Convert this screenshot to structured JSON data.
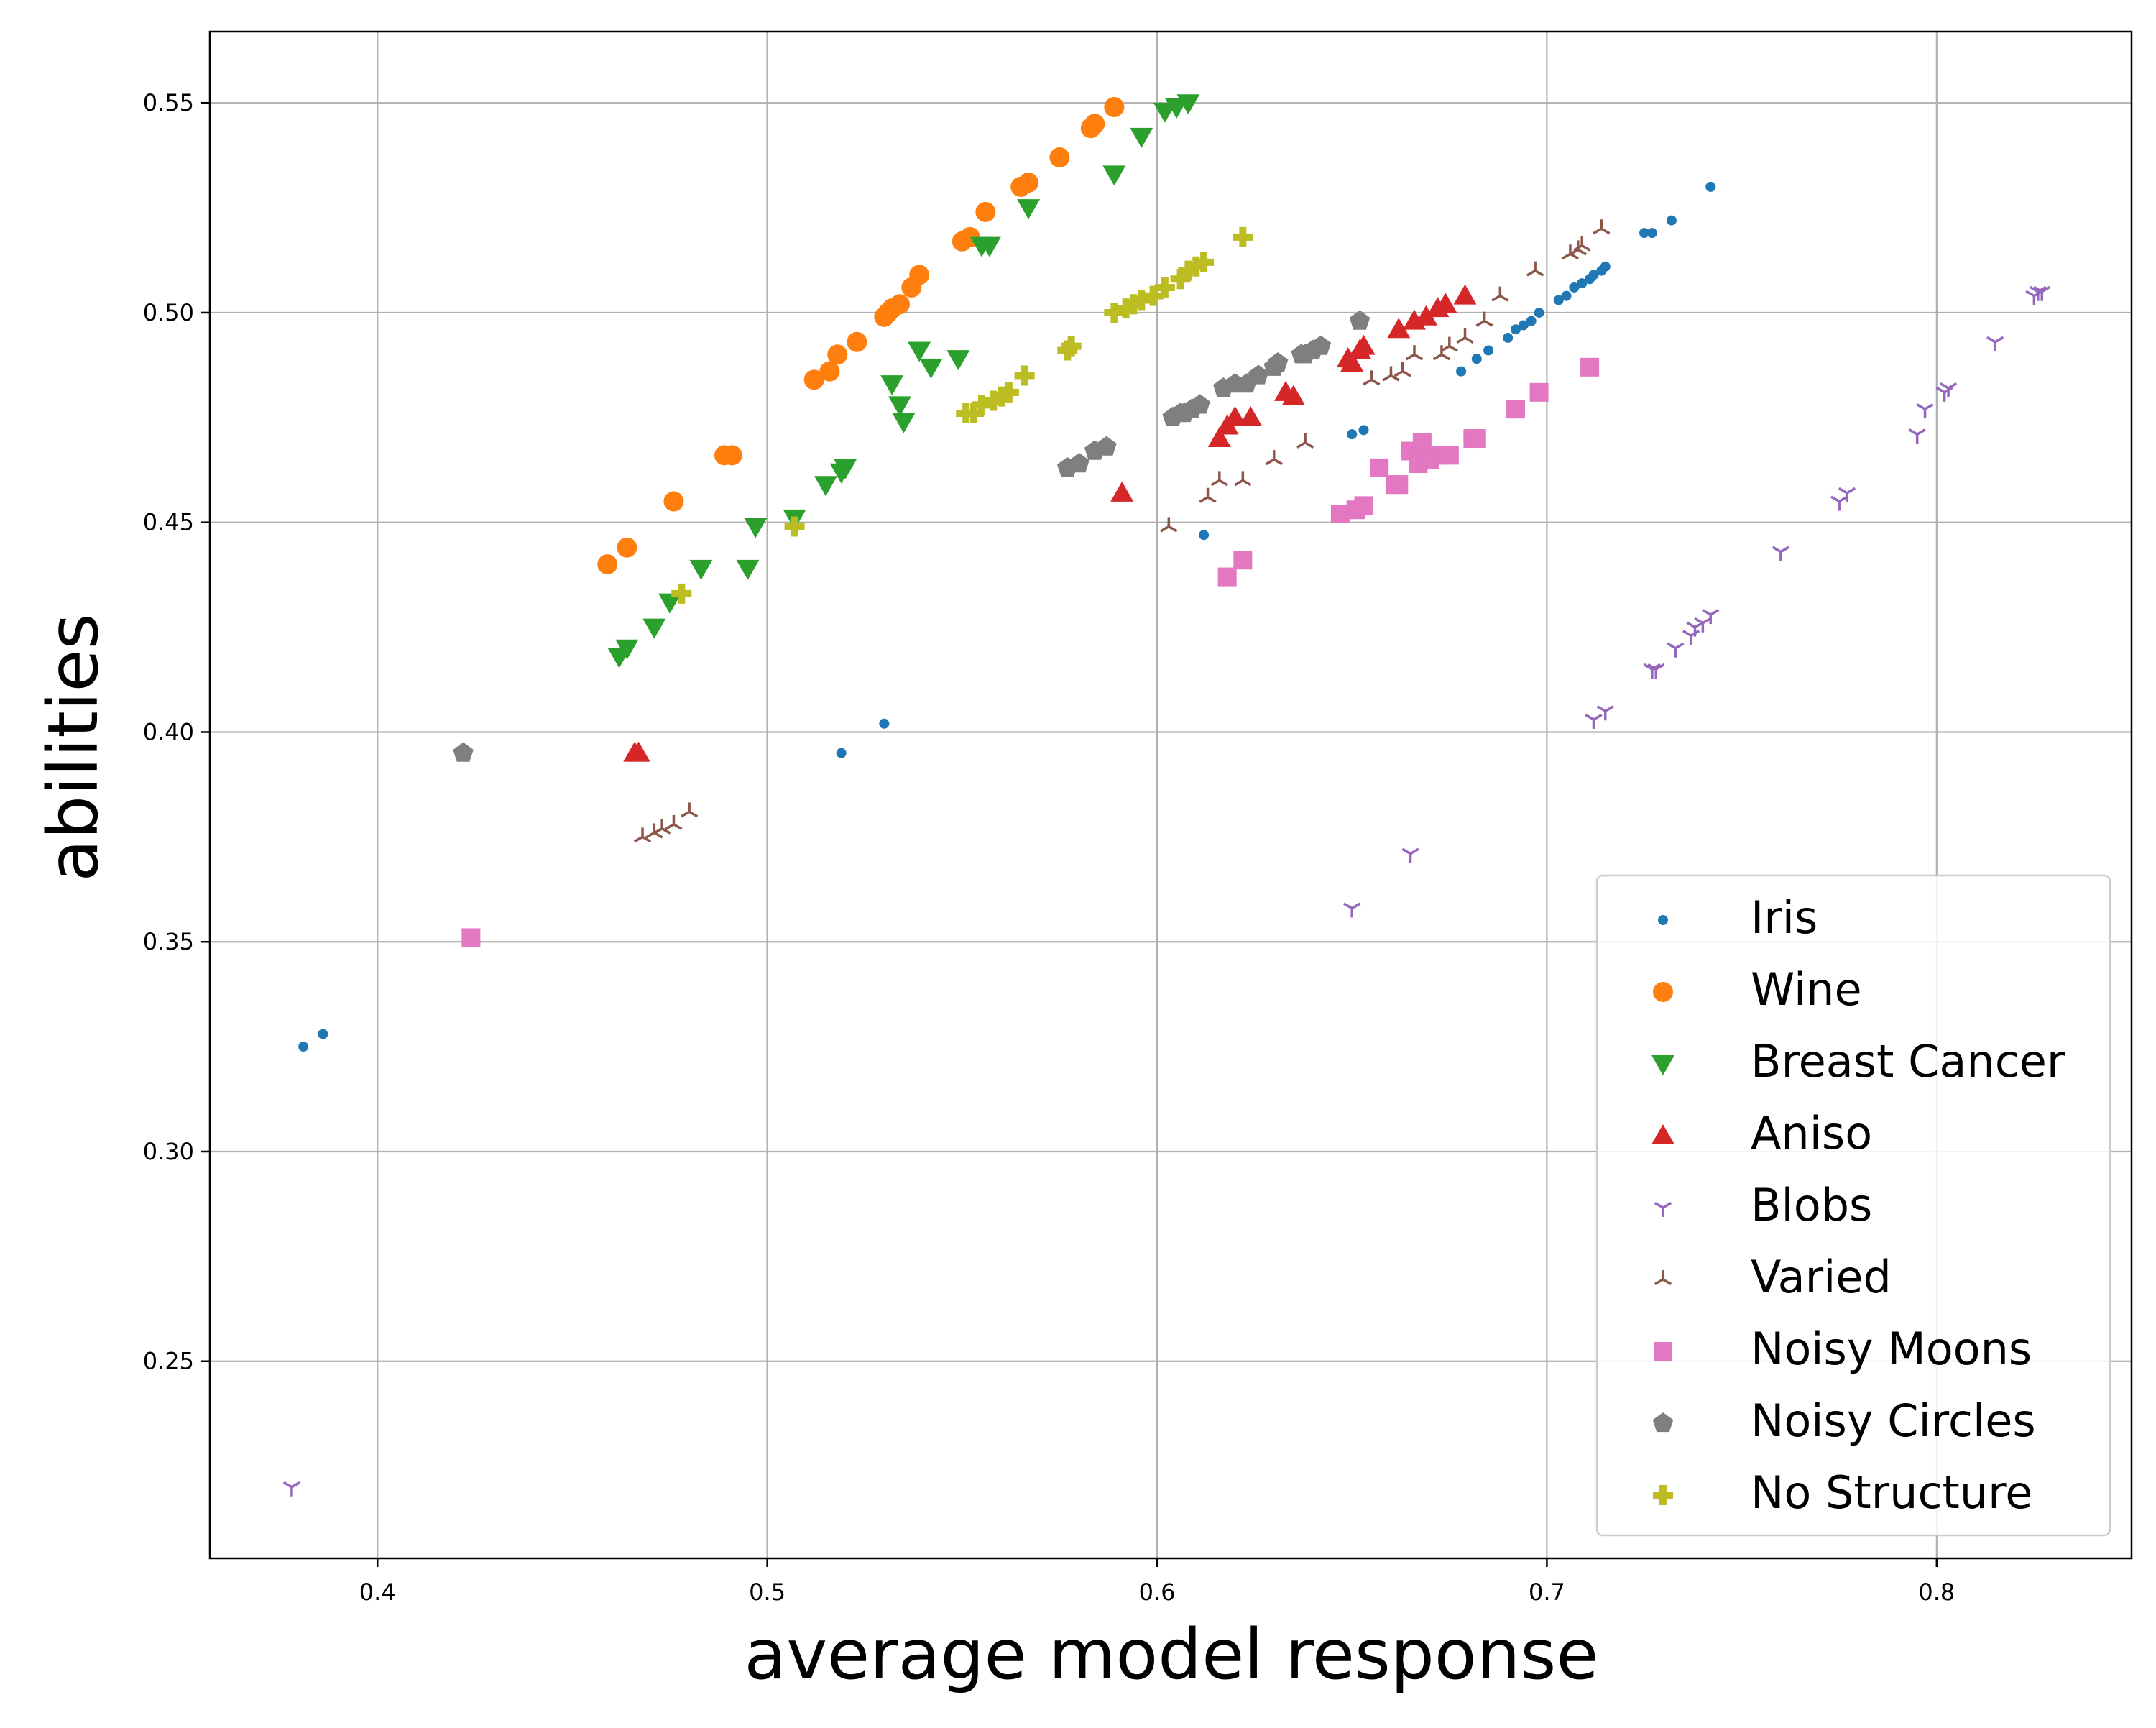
{
  "chart_data": {
    "type": "scatter",
    "title": "",
    "xlabel": "average model response",
    "ylabel": "abilities",
    "xlim": [
      0.357,
      0.85
    ],
    "ylim": [
      0.203,
      0.567
    ],
    "xticks": [
      0.4,
      0.5,
      0.6,
      0.7,
      0.8
    ],
    "xtick_labels": [
      "0.4",
      "0.5",
      "0.6",
      "0.7",
      "0.8"
    ],
    "yticks": [
      0.25,
      0.3,
      0.35,
      0.4,
      0.45,
      0.5,
      0.55
    ],
    "ytick_labels": [
      "0.25",
      "0.30",
      "0.35",
      "0.40",
      "0.45",
      "0.50",
      "0.55"
    ],
    "grid": true,
    "legend_position": "lower-right",
    "series": [
      {
        "name": "Iris",
        "color": "#1f77b4",
        "marker": "point",
        "x": [
          0.381,
          0.386,
          0.519,
          0.53,
          0.612,
          0.65,
          0.653,
          0.678,
          0.682,
          0.685,
          0.69,
          0.692,
          0.694,
          0.696,
          0.698,
          0.703,
          0.705,
          0.707,
          0.709,
          0.711,
          0.712,
          0.714,
          0.715,
          0.725,
          0.727,
          0.732,
          0.742
        ],
        "y": [
          0.325,
          0.328,
          0.395,
          0.402,
          0.447,
          0.471,
          0.472,
          0.486,
          0.489,
          0.491,
          0.494,
          0.496,
          0.497,
          0.498,
          0.5,
          0.503,
          0.504,
          0.506,
          0.507,
          0.508,
          0.509,
          0.51,
          0.511,
          0.519,
          0.519,
          0.522,
          0.53
        ]
      },
      {
        "name": "Wine",
        "color": "#ff7f0e",
        "marker": "circle",
        "x": [
          0.459,
          0.464,
          0.476,
          0.489,
          0.491,
          0.512,
          0.516,
          0.518,
          0.523,
          0.53,
          0.531,
          0.532,
          0.534,
          0.537,
          0.539,
          0.55,
          0.552,
          0.556,
          0.565,
          0.567,
          0.575,
          0.583,
          0.584,
          0.589
        ],
        "y": [
          0.44,
          0.444,
          0.455,
          0.466,
          0.466,
          0.484,
          0.486,
          0.49,
          0.493,
          0.499,
          0.5,
          0.501,
          0.502,
          0.506,
          0.509,
          0.517,
          0.518,
          0.524,
          0.53,
          0.531,
          0.537,
          0.544,
          0.545,
          0.549
        ]
      },
      {
        "name": "Breast Cancer",
        "color": "#2ca02c",
        "marker": "triangle-down",
        "x": [
          0.462,
          0.464,
          0.471,
          0.475,
          0.483,
          0.495,
          0.497,
          0.507,
          0.515,
          0.519,
          0.52,
          0.532,
          0.534,
          0.535,
          0.539,
          0.542,
          0.549,
          0.555,
          0.557,
          0.567,
          0.589,
          0.596,
          0.602,
          0.605,
          0.608
        ],
        "y": [
          0.418,
          0.42,
          0.425,
          0.431,
          0.439,
          0.439,
          0.449,
          0.451,
          0.459,
          0.462,
          0.463,
          0.483,
          0.478,
          0.474,
          0.491,
          0.487,
          0.489,
          0.516,
          0.516,
          0.525,
          0.533,
          0.542,
          0.548,
          0.549,
          0.55
        ]
      },
      {
        "name": "Aniso",
        "color": "#d62728",
        "marker": "triangle-up",
        "x": [
          0.466,
          0.467,
          0.591,
          0.616,
          0.618,
          0.62,
          0.624,
          0.633,
          0.635,
          0.649,
          0.65,
          0.652,
          0.653,
          0.662,
          0.666,
          0.669,
          0.672,
          0.674,
          0.679
        ],
        "y": [
          0.395,
          0.395,
          0.457,
          0.47,
          0.473,
          0.475,
          0.475,
          0.481,
          0.48,
          0.489,
          0.488,
          0.491,
          0.492,
          0.496,
          0.498,
          0.499,
          0.501,
          0.502,
          0.504
        ]
      },
      {
        "name": "Blobs",
        "color": "#9467bd",
        "marker": "tri-down",
        "x": [
          0.378,
          0.65,
          0.665,
          0.712,
          0.715,
          0.727,
          0.728,
          0.733,
          0.737,
          0.738,
          0.74,
          0.742,
          0.76,
          0.775,
          0.777,
          0.795,
          0.797,
          0.802,
          0.803,
          0.815,
          0.825,
          0.826,
          0.827
        ],
        "y": [
          0.22,
          0.358,
          0.371,
          0.403,
          0.405,
          0.415,
          0.415,
          0.42,
          0.423,
          0.425,
          0.426,
          0.428,
          0.443,
          0.455,
          0.457,
          0.471,
          0.477,
          0.481,
          0.482,
          0.493,
          0.504,
          0.505,
          0.505
        ]
      },
      {
        "name": "Varied",
        "color": "#8c564b",
        "marker": "tri-up",
        "x": [
          0.468,
          0.471,
          0.473,
          0.476,
          0.48,
          0.603,
          0.613,
          0.616,
          0.622,
          0.63,
          0.638,
          0.655,
          0.66,
          0.663,
          0.666,
          0.673,
          0.675,
          0.679,
          0.684,
          0.688,
          0.697,
          0.706,
          0.708,
          0.709,
          0.714
        ],
        "y": [
          0.375,
          0.376,
          0.377,
          0.378,
          0.381,
          0.449,
          0.456,
          0.46,
          0.46,
          0.465,
          0.469,
          0.484,
          0.485,
          0.486,
          0.49,
          0.49,
          0.492,
          0.494,
          0.498,
          0.504,
          0.51,
          0.514,
          0.515,
          0.516,
          0.52
        ]
      },
      {
        "name": "Noisy Moons",
        "color": "#e377c2",
        "marker": "square",
        "x": [
          0.424,
          0.618,
          0.622,
          0.647,
          0.651,
          0.653,
          0.657,
          0.661,
          0.662,
          0.665,
          0.667,
          0.668,
          0.669,
          0.67,
          0.672,
          0.675,
          0.681,
          0.682,
          0.692,
          0.698,
          0.711
        ],
        "y": [
          0.351,
          0.437,
          0.441,
          0.452,
          0.453,
          0.454,
          0.463,
          0.459,
          0.459,
          0.467,
          0.464,
          0.469,
          0.465,
          0.465,
          0.466,
          0.466,
          0.47,
          0.47,
          0.477,
          0.481,
          0.487
        ]
      },
      {
        "name": "Noisy Circles",
        "color": "#7f7f7f",
        "marker": "pentagon",
        "x": [
          0.422,
          0.577,
          0.58,
          0.584,
          0.587,
          0.604,
          0.606,
          0.607,
          0.609,
          0.611,
          0.617,
          0.62,
          0.623,
          0.626,
          0.63,
          0.631,
          0.637,
          0.638,
          0.64,
          0.642,
          0.652
        ],
        "y": [
          0.395,
          0.463,
          0.464,
          0.467,
          0.468,
          0.475,
          0.476,
          0.476,
          0.477,
          0.478,
          0.482,
          0.483,
          0.483,
          0.485,
          0.487,
          0.488,
          0.49,
          0.49,
          0.491,
          0.492,
          0.498
        ]
      },
      {
        "name": "No Structure",
        "color": "#bcbd22",
        "marker": "plus",
        "x": [
          0.478,
          0.507,
          0.551,
          0.553,
          0.555,
          0.558,
          0.56,
          0.562,
          0.566,
          0.577,
          0.578,
          0.589,
          0.592,
          0.594,
          0.596,
          0.599,
          0.602,
          0.606,
          0.608,
          0.61,
          0.612,
          0.622
        ],
        "y": [
          0.433,
          0.449,
          0.476,
          0.476,
          0.478,
          0.479,
          0.48,
          0.481,
          0.485,
          0.491,
          0.492,
          0.5,
          0.501,
          0.502,
          0.503,
          0.504,
          0.506,
          0.508,
          0.51,
          0.511,
          0.512,
          0.518
        ]
      }
    ]
  }
}
